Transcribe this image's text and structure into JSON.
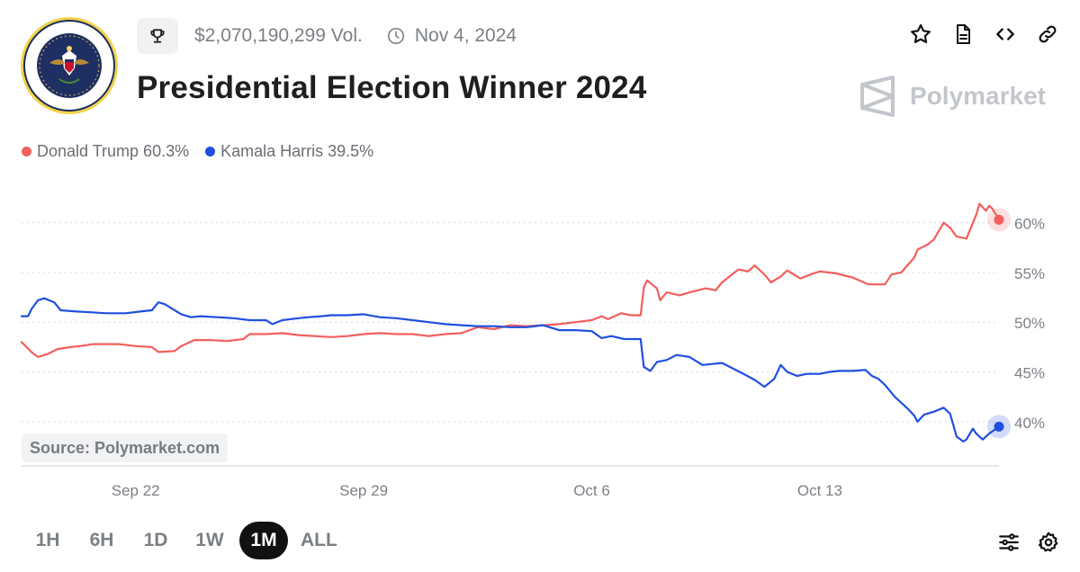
{
  "header": {
    "volume": "$2,070,190,299 Vol.",
    "date": "Nov 4, 2024",
    "title": "Presidential Election Winner 2024",
    "brand": "Polymarket",
    "seal_text": "SEAL OF THE PRESIDENT OF THE UNITED STATES",
    "icons": [
      "trophy-icon",
      "clock-icon",
      "star-icon",
      "document-icon",
      "code-icon",
      "link-icon"
    ]
  },
  "legend": [
    {
      "label": "Donald Trump 60.3%",
      "color": "#f25f5c"
    },
    {
      "label": "Kamala Harris 39.5%",
      "color": "#1f4fe0"
    }
  ],
  "source": "Source: Polymarket.com",
  "ranges": [
    {
      "label": "1H",
      "active": false
    },
    {
      "label": "6H",
      "active": false
    },
    {
      "label": "1D",
      "active": false
    },
    {
      "label": "1W",
      "active": false
    },
    {
      "label": "1M",
      "active": true
    },
    {
      "label": "ALL",
      "active": false
    }
  ],
  "toolbar_icons": [
    "sliders-icon",
    "settings-icon"
  ],
  "chart_data": {
    "type": "line",
    "x_unit": "day of 2024 (Sep 22 = 0)",
    "x_ticks": [
      {
        "x": 0,
        "label": "Sep 22"
      },
      {
        "x": 7,
        "label": "Sep 29"
      },
      {
        "x": 14,
        "label": "Oct 6"
      },
      {
        "x": 21,
        "label": "Oct 13"
      }
    ],
    "xlim": [
      -3.5,
      26.5
    ],
    "ylim": [
      37,
      62.5
    ],
    "yticks": [
      40,
      45,
      50,
      55,
      60
    ],
    "ytick_labels": [
      "40%",
      "45%",
      "50%",
      "55%",
      "60%"
    ],
    "grid": true,
    "series": [
      {
        "name": "Donald Trump",
        "color": "#f25f5c",
        "last_value": 60.3,
        "points": [
          [
            -3.5,
            48.0
          ],
          [
            -3.2,
            47.0
          ],
          [
            -3.0,
            46.5
          ],
          [
            -2.7,
            46.8
          ],
          [
            -2.4,
            47.3
          ],
          [
            -2.0,
            47.5
          ],
          [
            -1.7,
            47.6
          ],
          [
            -1.3,
            47.8
          ],
          [
            -0.9,
            47.8
          ],
          [
            -0.5,
            47.8
          ],
          [
            0,
            47.6
          ],
          [
            0.5,
            47.5
          ],
          [
            0.7,
            47.0
          ],
          [
            1.2,
            47.1
          ],
          [
            1.4,
            47.6
          ],
          [
            1.8,
            48.2
          ],
          [
            2.3,
            48.2
          ],
          [
            2.8,
            48.1
          ],
          [
            3.3,
            48.3
          ],
          [
            3.5,
            48.8
          ],
          [
            4.0,
            48.8
          ],
          [
            4.5,
            48.9
          ],
          [
            5.0,
            48.7
          ],
          [
            5.5,
            48.6
          ],
          [
            6.0,
            48.5
          ],
          [
            6.5,
            48.6
          ],
          [
            7.0,
            48.8
          ],
          [
            7.5,
            48.9
          ],
          [
            8.0,
            48.8
          ],
          [
            8.5,
            48.8
          ],
          [
            9.0,
            48.6
          ],
          [
            9.5,
            48.8
          ],
          [
            10.0,
            48.9
          ],
          [
            10.5,
            49.5
          ],
          [
            11.0,
            49.3
          ],
          [
            11.5,
            49.7
          ],
          [
            12.0,
            49.6
          ],
          [
            12.5,
            49.7
          ],
          [
            13.0,
            49.8
          ],
          [
            13.5,
            50.0
          ],
          [
            14.0,
            50.2
          ],
          [
            14.3,
            50.6
          ],
          [
            14.5,
            50.3
          ],
          [
            14.9,
            50.9
          ],
          [
            15.2,
            50.7
          ],
          [
            15.5,
            50.7
          ],
          [
            15.6,
            53.5
          ],
          [
            15.7,
            54.2
          ],
          [
            16.0,
            53.4
          ],
          [
            16.1,
            52.2
          ],
          [
            16.3,
            53.0
          ],
          [
            16.7,
            52.7
          ],
          [
            17.0,
            53.0
          ],
          [
            17.5,
            53.4
          ],
          [
            17.8,
            53.2
          ],
          [
            18.0,
            54.0
          ],
          [
            18.5,
            55.3
          ],
          [
            18.8,
            55.1
          ],
          [
            19.0,
            55.7
          ],
          [
            19.3,
            54.8
          ],
          [
            19.5,
            54.0
          ],
          [
            19.8,
            54.6
          ],
          [
            20.0,
            55.2
          ],
          [
            20.4,
            54.4
          ],
          [
            20.8,
            54.9
          ],
          [
            21.0,
            55.1
          ],
          [
            21.5,
            54.9
          ],
          [
            22.0,
            54.5
          ],
          [
            22.5,
            53.8
          ],
          [
            23.0,
            53.8
          ],
          [
            23.2,
            54.8
          ],
          [
            23.5,
            55.0
          ],
          [
            23.9,
            56.5
          ],
          [
            24.0,
            57.3
          ],
          [
            24.3,
            57.8
          ],
          [
            24.5,
            58.3
          ],
          [
            24.8,
            60.0
          ],
          [
            25.0,
            59.5
          ],
          [
            25.2,
            58.6
          ],
          [
            25.5,
            58.4
          ],
          [
            25.8,
            60.8
          ],
          [
            25.9,
            61.9
          ],
          [
            26.1,
            61.2
          ],
          [
            26.2,
            61.7
          ],
          [
            26.3,
            61.4
          ],
          [
            26.5,
            60.3
          ]
        ]
      },
      {
        "name": "Kamala Harris",
        "color": "#1f4fe0",
        "last_value": 39.5,
        "points": [
          [
            -3.5,
            50.6
          ],
          [
            -3.3,
            50.6
          ],
          [
            -3.2,
            51.3
          ],
          [
            -3.0,
            52.2
          ],
          [
            -2.8,
            52.4
          ],
          [
            -2.5,
            52.0
          ],
          [
            -2.3,
            51.2
          ],
          [
            -1.9,
            51.1
          ],
          [
            -1.4,
            51.0
          ],
          [
            -0.9,
            50.9
          ],
          [
            -0.3,
            50.9
          ],
          [
            0.2,
            51.1
          ],
          [
            0.5,
            51.2
          ],
          [
            0.7,
            52.0
          ],
          [
            0.9,
            51.8
          ],
          [
            1.1,
            51.4
          ],
          [
            1.4,
            50.8
          ],
          [
            1.7,
            50.5
          ],
          [
            2.0,
            50.6
          ],
          [
            2.5,
            50.5
          ],
          [
            3.0,
            50.4
          ],
          [
            3.5,
            50.2
          ],
          [
            4.0,
            50.2
          ],
          [
            4.2,
            49.8
          ],
          [
            4.5,
            50.2
          ],
          [
            5.0,
            50.4
          ],
          [
            5.3,
            50.5
          ],
          [
            5.7,
            50.6
          ],
          [
            6.0,
            50.7
          ],
          [
            6.5,
            50.7
          ],
          [
            7.0,
            50.8
          ],
          [
            7.5,
            50.5
          ],
          [
            8.0,
            50.4
          ],
          [
            8.5,
            50.2
          ],
          [
            9.0,
            50.0
          ],
          [
            9.5,
            49.8
          ],
          [
            10.0,
            49.7
          ],
          [
            10.5,
            49.6
          ],
          [
            11.0,
            49.6
          ],
          [
            11.5,
            49.5
          ],
          [
            12.0,
            49.5
          ],
          [
            12.5,
            49.7
          ],
          [
            13.0,
            49.2
          ],
          [
            13.5,
            49.2
          ],
          [
            14.0,
            49.1
          ],
          [
            14.3,
            48.4
          ],
          [
            14.6,
            48.6
          ],
          [
            15.0,
            48.3
          ],
          [
            15.5,
            48.3
          ],
          [
            15.6,
            45.5
          ],
          [
            15.8,
            45.1
          ],
          [
            16.0,
            46.0
          ],
          [
            16.3,
            46.2
          ],
          [
            16.6,
            46.7
          ],
          [
            17.0,
            46.5
          ],
          [
            17.4,
            45.7
          ],
          [
            17.7,
            45.8
          ],
          [
            18.0,
            45.9
          ],
          [
            18.3,
            45.4
          ],
          [
            18.6,
            44.9
          ],
          [
            19.0,
            44.2
          ],
          [
            19.3,
            43.5
          ],
          [
            19.6,
            44.3
          ],
          [
            19.8,
            45.7
          ],
          [
            20.0,
            45.0
          ],
          [
            20.3,
            44.6
          ],
          [
            20.6,
            44.8
          ],
          [
            21.0,
            44.8
          ],
          [
            21.3,
            45.0
          ],
          [
            21.6,
            45.1
          ],
          [
            22.0,
            45.1
          ],
          [
            22.4,
            45.2
          ],
          [
            22.6,
            44.6
          ],
          [
            22.8,
            44.3
          ],
          [
            23.0,
            43.7
          ],
          [
            23.3,
            42.5
          ],
          [
            23.7,
            41.3
          ],
          [
            23.9,
            40.6
          ],
          [
            24.0,
            40.0
          ],
          [
            24.2,
            40.7
          ],
          [
            24.5,
            41.0
          ],
          [
            24.8,
            41.4
          ],
          [
            25.0,
            40.8
          ],
          [
            25.2,
            38.5
          ],
          [
            25.4,
            38.0
          ],
          [
            25.5,
            38.2
          ],
          [
            25.7,
            39.3
          ],
          [
            25.8,
            38.8
          ],
          [
            26.0,
            38.2
          ],
          [
            26.2,
            38.8
          ],
          [
            26.5,
            39.5
          ]
        ]
      }
    ]
  }
}
